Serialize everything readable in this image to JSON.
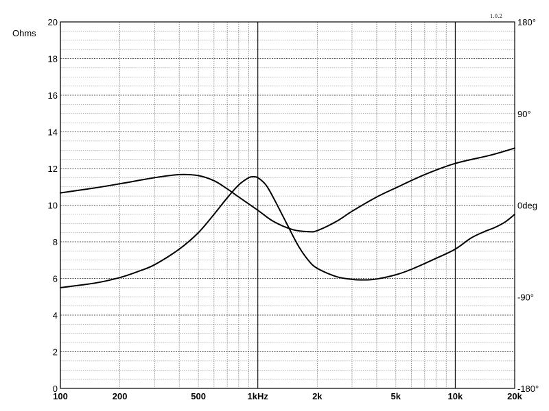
{
  "chart_data": {
    "type": "line",
    "title": "",
    "xlabel": "",
    "ylabel": "Ohms",
    "version_label": "1.0.2",
    "x_scale": "log",
    "xlim": [
      100,
      20000
    ],
    "ylim": [
      0,
      20
    ],
    "y2lim": [
      -180,
      180
    ],
    "grid": true,
    "x_ticks": [
      {
        "value": 100,
        "label": "100"
      },
      {
        "value": 200,
        "label": "200"
      },
      {
        "value": 500,
        "label": "500"
      },
      {
        "value": 1000,
        "label": "1kHz"
      },
      {
        "value": 2000,
        "label": "2k"
      },
      {
        "value": 5000,
        "label": "5k"
      },
      {
        "value": 10000,
        "label": "10k"
      },
      {
        "value": 20000,
        "label": "20k"
      }
    ],
    "y_ticks": [
      {
        "value": 0,
        "label": "0"
      },
      {
        "value": 2,
        "label": "2"
      },
      {
        "value": 4,
        "label": "4"
      },
      {
        "value": 6,
        "label": "6"
      },
      {
        "value": 8,
        "label": "8"
      },
      {
        "value": 10,
        "label": "10"
      },
      {
        "value": 12,
        "label": "12"
      },
      {
        "value": 14,
        "label": "14"
      },
      {
        "value": 16,
        "label": "16"
      },
      {
        "value": 18,
        "label": "18"
      },
      {
        "value": 20,
        "label": "20"
      }
    ],
    "y2_ticks": [
      {
        "value": 180,
        "label": "180°"
      },
      {
        "value": 90,
        "label": "90°"
      },
      {
        "value": 0,
        "label": "0deg"
      },
      {
        "value": -90,
        "label": "-90°"
      },
      {
        "value": -180,
        "label": "-180°"
      }
    ],
    "series": [
      {
        "axis": "left",
        "color": "#000000",
        "x": [
          100,
          150,
          200,
          250,
          300,
          400,
          500,
          600,
          700,
          800,
          900,
          950,
          1000,
          1100,
          1200,
          1400,
          1600,
          1800,
          2000,
          2500,
          3000,
          3500,
          4000,
          5000,
          6000,
          8000,
          10000,
          12000,
          14000,
          16000,
          18000,
          20000
        ],
        "y": [
          5.5,
          5.75,
          6.05,
          6.4,
          6.75,
          7.6,
          8.5,
          9.5,
          10.4,
          11.1,
          11.5,
          11.55,
          11.5,
          11.1,
          10.4,
          9.0,
          7.8,
          7.0,
          6.55,
          6.1,
          5.95,
          5.92,
          5.97,
          6.2,
          6.5,
          7.1,
          7.6,
          8.2,
          8.55,
          8.8,
          9.1,
          9.5
        ]
      },
      {
        "axis": "right",
        "color": "#000000",
        "x": [
          100,
          150,
          200,
          300,
          400,
          500,
          600,
          700,
          800,
          1000,
          1200,
          1500,
          1800,
          2000,
          2500,
          3000,
          4000,
          5000,
          7000,
          10000,
          15000,
          20000
        ],
        "y": [
          12,
          17,
          21,
          27,
          30,
          29,
          24,
          16,
          8,
          -5,
          -16,
          -24,
          -26,
          -25,
          -16,
          -6,
          8,
          17,
          30,
          41,
          49,
          56
        ]
      }
    ]
  }
}
